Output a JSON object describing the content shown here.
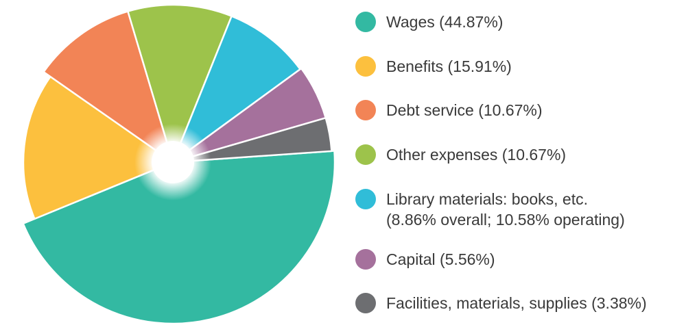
{
  "chart_data": {
    "type": "pie",
    "legend_position": "right",
    "categories": [
      "Wages",
      "Benefits",
      "Debt service",
      "Other expenses",
      "Library materials: books, etc.",
      "Capital",
      "Facilities, materials, supplies"
    ],
    "values": [
      44.87,
      15.91,
      10.67,
      10.67,
      8.86,
      5.56,
      3.38
    ],
    "colors": [
      "#33b9a2",
      "#fcc03e",
      "#f28456",
      "#9dc34b",
      "#30bdd8",
      "#a5719c",
      "#6d6e71"
    ],
    "legend_labels": [
      "Wages (44.87%)",
      "Benefits (15.91%)",
      "Debt service (10.67%)",
      "Other expenses (10.67%)",
      "Library materials: books, etc.\n(8.86% overall; 10.58% operating)",
      "Capital (5.56%)",
      "Facilities, materials, supplies (3.38%)"
    ]
  }
}
